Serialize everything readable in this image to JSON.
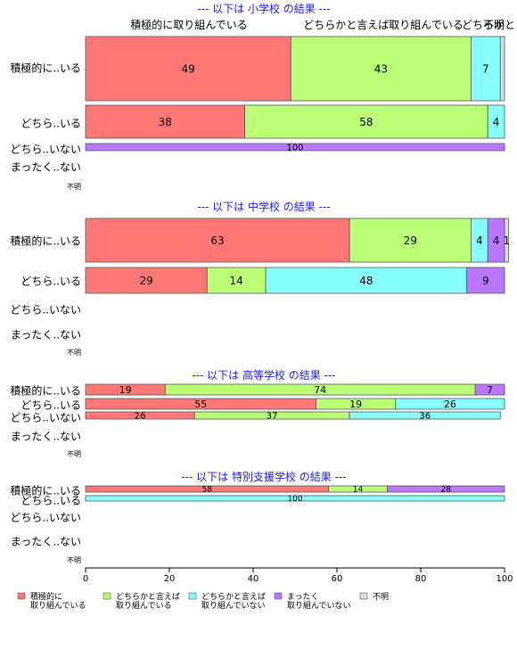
{
  "chart_data": {
    "type": "bar",
    "orientation": "horizontal",
    "stacked": true,
    "xlim": [
      0,
      100
    ],
    "x_ticks": [
      "0",
      "20",
      "40",
      "60",
      "80",
      "100"
    ],
    "colors": {
      "積極的に取り組んでいる": "#ff7777",
      "どちらかと言えば取り組んでいる": "#bbff77",
      "どちらかと言えば取り組んでいない": "#88ffff",
      "まったく取り組んでいない": "#bb77ff",
      "不明": "#dddddd"
    },
    "top_category_labels": [
      "積極的に取り組んでいる",
      "どちらかと言えば取り組んでいる",
      "どちらかと",
      "不明"
    ],
    "legend": [
      {
        "key": "積極的に取り組んでいる",
        "lines": [
          "積極的に",
          "取り組んでいる"
        ]
      },
      {
        "key": "どちらかと言えば取り組んでいる",
        "lines": [
          "どちらかと言えば",
          "取り組んでいる"
        ]
      },
      {
        "key": "どちらかと言えば取り組んでいない",
        "lines": [
          "どちらかと言えば",
          "取り組んでいない"
        ]
      },
      {
        "key": "まったく取り組んでいない",
        "lines": [
          "まったく",
          "取り組んでいない"
        ]
      },
      {
        "key": "不明",
        "lines": [
          "不明"
        ]
      }
    ],
    "panels": [
      {
        "title": "--- 以下は 小学校 の結果 ---",
        "rows": [
          {
            "label": "積極的に..いる",
            "segments": [
              {
                "series": "積極的に取り組んでいる",
                "value": 49,
                "label": "49"
              },
              {
                "series": "どちらかと言えば取り組んでいる",
                "value": 43,
                "label": "43"
              },
              {
                "series": "どちらかと言えば取り組んでいない",
                "value": 7,
                "label": "7"
              },
              {
                "series": "不明",
                "value": 1,
                "label": ""
              }
            ]
          },
          {
            "label": "どちら..いる",
            "segments": [
              {
                "series": "積極的に取り組んでいる",
                "value": 38,
                "label": "38"
              },
              {
                "series": "どちらかと言えば取り組んでいる",
                "value": 58,
                "label": "58"
              },
              {
                "series": "どちらかと言えば取り組んでいない",
                "value": 4,
                "label": "4"
              }
            ]
          },
          {
            "label": "どちら..いない",
            "segments": [
              {
                "series": "まったく取り組んでいない",
                "value": 100,
                "label": "100"
              }
            ]
          },
          {
            "label": "まったく..ない",
            "segments": []
          },
          {
            "label": "不明",
            "segments": []
          }
        ]
      },
      {
        "title": "--- 以下は 中学校 の結果 ---",
        "rows": [
          {
            "label": "積極的に..いる",
            "segments": [
              {
                "series": "積極的に取り組んでいる",
                "value": 63,
                "label": "63"
              },
              {
                "series": "どちらかと言えば取り組んでいる",
                "value": 29,
                "label": "29"
              },
              {
                "series": "どちらかと言えば取り組んでいない",
                "value": 4,
                "label": "4"
              },
              {
                "series": "まったく取り組んでいない",
                "value": 4,
                "label": "4"
              },
              {
                "series": "不明",
                "value": 1,
                "label": "1"
              }
            ]
          },
          {
            "label": "どちら..いる",
            "segments": [
              {
                "series": "積極的に取り組んでいる",
                "value": 29,
                "label": "29"
              },
              {
                "series": "どちらかと言えば取り組んでいる",
                "value": 14,
                "label": "14"
              },
              {
                "series": "どちらかと言えば取り組んでいない",
                "value": 48,
                "label": "48"
              },
              {
                "series": "まったく取り組んでいない",
                "value": 9,
                "label": "9"
              }
            ]
          },
          {
            "label": "どちら..いない",
            "segments": []
          },
          {
            "label": "まったく..ない",
            "segments": []
          },
          {
            "label": "不明",
            "segments": []
          }
        ]
      },
      {
        "title": "--- 以下は 高等学校 の結果 ---",
        "rows": [
          {
            "label": "積極的に..いる",
            "segments": [
              {
                "series": "積極的に取り組んでいる",
                "value": 19,
                "label": "19"
              },
              {
                "series": "どちらかと言えば取り組んでいる",
                "value": 74,
                "label": "74"
              },
              {
                "series": "まったく取り組んでいない",
                "value": 7,
                "label": "7"
              }
            ]
          },
          {
            "label": "どちら..いる",
            "segments": [
              {
                "series": "積極的に取り組んでいる",
                "value": 55,
                "label": "55"
              },
              {
                "series": "どちらかと言えば取り組んでいる",
                "value": 19,
                "label": "19"
              },
              {
                "series": "どちらかと言えば取り組んでいない",
                "value": 26,
                "label": "26"
              }
            ]
          },
          {
            "label": "どちら..いない",
            "segments": [
              {
                "series": "積極的に取り組んでいる",
                "value": 26,
                "label": "26"
              },
              {
                "series": "どちらかと言えば取り組んでいる",
                "value": 37,
                "label": "37"
              },
              {
                "series": "どちらかと言えば取り組んでいない",
                "value": 36,
                "label": "36"
              }
            ]
          },
          {
            "label": "まったく..ない",
            "segments": []
          },
          {
            "label": "不明",
            "segments": []
          }
        ]
      },
      {
        "title": "--- 以下は 特別支援学校 の結果 ---",
        "rows": [
          {
            "label": "積極的に..いる",
            "segments": [
              {
                "series": "積極的に取り組んでいる",
                "value": 58,
                "label": "58"
              },
              {
                "series": "どちらかと言えば取り組んでいる",
                "value": 14,
                "label": "14"
              },
              {
                "series": "まったく取り組んでいない",
                "value": 28,
                "label": "28"
              }
            ]
          },
          {
            "label": "どちら..いる",
            "segments": [
              {
                "series": "どちらかと言えば取り組んでいない",
                "value": 100,
                "label": "100"
              }
            ]
          },
          {
            "label": "どちら..いない",
            "segments": []
          },
          {
            "label": "まったく..ない",
            "segments": []
          },
          {
            "label": "不明",
            "segments": []
          }
        ]
      }
    ]
  }
}
